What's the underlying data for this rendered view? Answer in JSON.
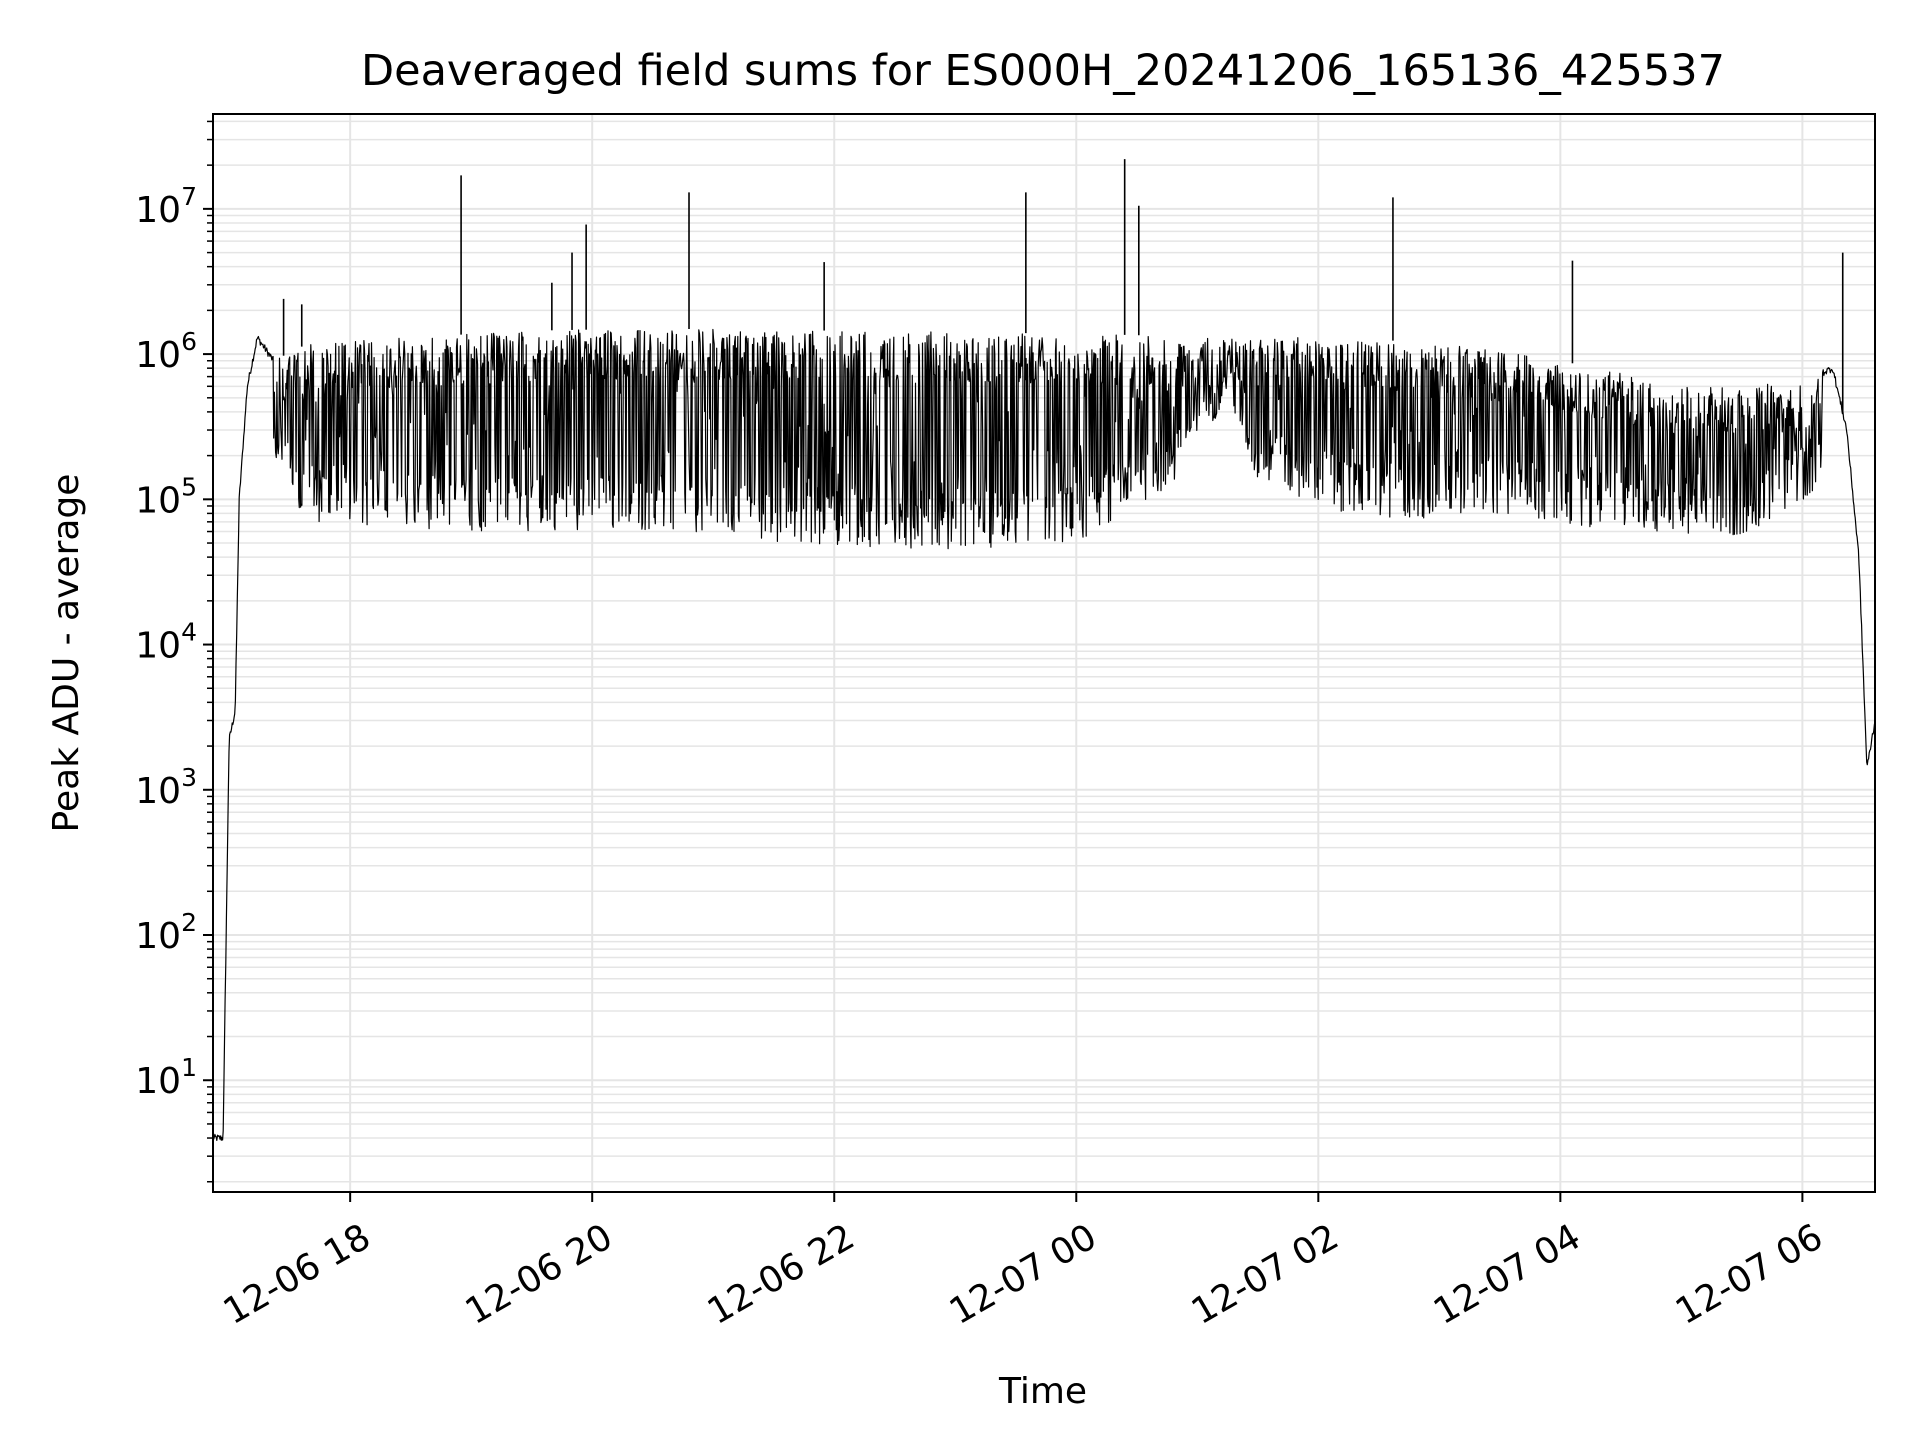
{
  "chart_data": {
    "type": "line",
    "title": "Deaveraged field sums for ES000H_20241206_165136_425537",
    "xlabel": "Time",
    "ylabel": "Peak ADU - average",
    "yscale": "log",
    "ylim": [
      1.7,
      45000000
    ],
    "xlim": [
      "2024-12-06 16:52",
      "2024-12-07 06:36"
    ],
    "grid": true,
    "line_color": "#000000",
    "grid_color": "#e5e5e5",
    "x_ticks": [
      {
        "label": "12-06 18",
        "time": "2024-12-06 18:00"
      },
      {
        "label": "12-06 20",
        "time": "2024-12-06 20:00"
      },
      {
        "label": "12-06 22",
        "time": "2024-12-06 22:00"
      },
      {
        "label": "12-07 00",
        "time": "2024-12-07 00:00"
      },
      {
        "label": "12-07 02",
        "time": "2024-12-07 02:00"
      },
      {
        "label": "12-07 04",
        "time": "2024-12-07 04:00"
      },
      {
        "label": "12-07 06",
        "time": "2024-12-07 06:00"
      }
    ],
    "y_ticks": [
      {
        "base": "10",
        "exp": "1",
        "value": 10
      },
      {
        "base": "10",
        "exp": "2",
        "value": 100
      },
      {
        "base": "10",
        "exp": "3",
        "value": 1000
      },
      {
        "base": "10",
        "exp": "4",
        "value": 10000
      },
      {
        "base": "10",
        "exp": "5",
        "value": 100000
      },
      {
        "base": "10",
        "exp": "6",
        "value": 1000000
      },
      {
        "base": "10",
        "exp": "7",
        "value": 10000000
      }
    ],
    "series": [
      {
        "upper_envelope": [
          [
            "2024-12-06 16:52",
            4
          ],
          [
            "2024-12-06 16:57",
            4
          ],
          [
            "2024-12-06 17:00",
            2200
          ],
          [
            "2024-12-06 17:03",
            3500
          ],
          [
            "2024-12-06 17:05",
            100000
          ],
          [
            "2024-12-06 17:09",
            600000
          ],
          [
            "2024-12-06 17:14",
            1300000
          ],
          [
            "2024-12-06 17:22",
            900000
          ],
          [
            "2024-12-06 17:40",
            1200000
          ],
          [
            "2024-12-06 18:30",
            1300000
          ],
          [
            "2024-12-06 19:30",
            1450000
          ],
          [
            "2024-12-06 20:30",
            1500000
          ],
          [
            "2024-12-06 22:00",
            1450000
          ],
          [
            "2024-12-06 23:30",
            1400000
          ],
          [
            "2024-12-07 00:30",
            1350000
          ],
          [
            "2024-12-07 01:10",
            1300000
          ],
          [
            "2024-12-07 02:00",
            1300000
          ],
          [
            "2024-12-07 03:00",
            1200000
          ],
          [
            "2024-12-07 04:00",
            900000
          ],
          [
            "2024-12-07 05:00",
            600000
          ],
          [
            "2024-12-07 06:00",
            650000
          ],
          [
            "2024-12-07 06:15",
            800000
          ],
          [
            "2024-12-07 06:22",
            300000
          ],
          [
            "2024-12-07 06:28",
            40000
          ],
          [
            "2024-12-07 06:32",
            1400
          ],
          [
            "2024-12-07 06:36",
            3000
          ]
        ],
        "lower_envelope": [
          [
            "2024-12-06 17:22",
            200000
          ],
          [
            "2024-12-06 17:35",
            70000
          ],
          [
            "2024-12-06 19:00",
            60000
          ],
          [
            "2024-12-06 20:30",
            60000
          ],
          [
            "2024-12-06 21:30",
            50000
          ],
          [
            "2024-12-06 23:00",
            45000
          ],
          [
            "2024-12-07 00:00",
            50000
          ],
          [
            "2024-12-07 00:50",
            130000
          ],
          [
            "2024-12-07 01:15",
            500000
          ],
          [
            "2024-12-07 01:30",
            120000
          ],
          [
            "2024-12-07 02:30",
            70000
          ],
          [
            "2024-12-07 03:30",
            80000
          ],
          [
            "2024-12-07 04:30",
            60000
          ],
          [
            "2024-12-07 05:30",
            55000
          ],
          [
            "2024-12-07 06:10",
            120000
          ]
        ],
        "spikes": [
          [
            "2024-12-06 17:27",
            2400000
          ],
          [
            "2024-12-06 17:36",
            2200000
          ],
          [
            "2024-12-06 18:55",
            17000000
          ],
          [
            "2024-12-06 19:40",
            3100000
          ],
          [
            "2024-12-06 19:50",
            5000000
          ],
          [
            "2024-12-06 19:57",
            7800000
          ],
          [
            "2024-12-06 20:48",
            13000000
          ],
          [
            "2024-12-06 21:55",
            4300000
          ],
          [
            "2024-12-06 23:35",
            13000000
          ],
          [
            "2024-12-07 00:24",
            22000000
          ],
          [
            "2024-12-07 00:31",
            10500000
          ],
          [
            "2024-12-07 02:37",
            12000000
          ],
          [
            "2024-12-07 04:06",
            4400000
          ],
          [
            "2024-12-07 06:20",
            5000000
          ]
        ]
      }
    ]
  }
}
